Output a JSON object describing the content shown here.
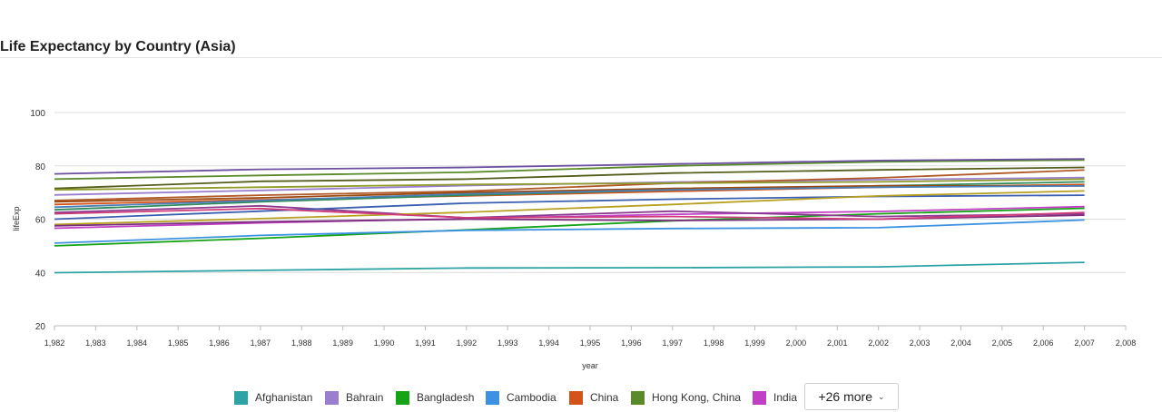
{
  "header": {
    "title": "Life Expectancy by Country (Asia)"
  },
  "chart_data": {
    "type": "line",
    "title": "Life Expectancy by Country (Asia)",
    "xlabel": "year",
    "ylabel": "lifeExp",
    "xlim": [
      1982,
      2008
    ],
    "ylim": [
      20,
      100
    ],
    "x_ticks": [
      "1,982",
      "1,983",
      "1,984",
      "1,985",
      "1,986",
      "1,987",
      "1,988",
      "1,989",
      "1,990",
      "1,991",
      "1,992",
      "1,993",
      "1,994",
      "1,995",
      "1,996",
      "1,997",
      "1,998",
      "1,999",
      "2,000",
      "2,001",
      "2,002",
      "2,003",
      "2,004",
      "2,005",
      "2,006",
      "2,007",
      "2,008"
    ],
    "y_ticks": [
      "20",
      "40",
      "60",
      "80",
      "100"
    ],
    "grid": "horizontal",
    "x": [
      1982,
      1987,
      1992,
      1997,
      2002,
      2007
    ],
    "series": [
      {
        "name": "Afghanistan",
        "color": "#2ea3a6",
        "values": [
          39.9,
          40.8,
          41.7,
          41.8,
          42.1,
          43.8
        ]
      },
      {
        "name": "Bahrain",
        "color": "#9b7fcf",
        "values": [
          69.1,
          70.8,
          72.6,
          73.9,
          74.8,
          75.6
        ]
      },
      {
        "name": "Bangladesh",
        "color": "#16a316",
        "values": [
          50.0,
          52.8,
          56.0,
          59.4,
          62.0,
          64.1
        ]
      },
      {
        "name": "Cambodia",
        "color": "#3c92e0",
        "values": [
          51.0,
          53.9,
          55.8,
          56.5,
          56.8,
          59.7
        ]
      },
      {
        "name": "China",
        "color": "#d4531b",
        "values": [
          65.5,
          67.3,
          68.7,
          70.4,
          72.0,
          73.0
        ]
      },
      {
        "name": "Hong Kong, China",
        "color": "#5a8a2a",
        "values": [
          75.0,
          76.4,
          77.6,
          80.0,
          81.5,
          82.2
        ]
      },
      {
        "name": "India",
        "color": "#c03fc4",
        "values": [
          56.6,
          58.6,
          60.2,
          61.8,
          62.9,
          64.7
        ]
      },
      {
        "color": "#6b4fa0",
        "values": [
          77.0,
          78.7,
          79.4,
          80.7,
          82.0,
          82.6
        ]
      },
      {
        "color": "#555e1c",
        "values": [
          71.5,
          74.2,
          75.0,
          77.3,
          78.5,
          79.4
        ]
      },
      {
        "color": "#b05a28",
        "values": [
          67.0,
          69.0,
          70.5,
          73.5,
          75.5,
          78.4
        ]
      },
      {
        "color": "#8a3b8f",
        "values": [
          62.5,
          65.0,
          60.5,
          63.0,
          61.0,
          62.0
        ]
      },
      {
        "color": "#3a5fb0",
        "values": [
          60.0,
          63.0,
          66.0,
          67.5,
          68.5,
          69.0
        ]
      },
      {
        "color": "#b8a020",
        "values": [
          58.0,
          60.2,
          62.6,
          65.5,
          68.7,
          70.6
        ]
      },
      {
        "color": "#7a2f7d",
        "values": [
          57.5,
          59.0,
          60.0,
          59.5,
          60.0,
          61.5
        ]
      },
      {
        "color": "#2f8a5a",
        "values": [
          63.5,
          66.5,
          69.0,
          71.0,
          72.5,
          74.0
        ]
      },
      {
        "color": "#9a4a10",
        "values": [
          66.5,
          68.0,
          70.0,
          71.5,
          72.5,
          72.5
        ]
      },
      {
        "color": "#4a7fb8",
        "values": [
          64.5,
          67.0,
          69.5,
          71.0,
          72.0,
          72.5
        ]
      },
      {
        "color": "#d03b7a",
        "values": [
          62.0,
          64.0,
          60.5,
          61.0,
          60.0,
          62.5
        ]
      },
      {
        "color": "#8f9b2a",
        "values": [
          71.0,
          72.0,
          73.0,
          73.5,
          74.0,
          75.0
        ]
      }
    ],
    "legend": {
      "placement": "bottom",
      "visible_items": [
        {
          "label": "Afghanistan",
          "color": "#2ea3a6"
        },
        {
          "label": "Bahrain",
          "color": "#9b7fcf"
        },
        {
          "label": "Bangladesh",
          "color": "#16a316"
        },
        {
          "label": "Cambodia",
          "color": "#3c92e0"
        },
        {
          "label": "China",
          "color": "#d4531b"
        },
        {
          "label": "Hong Kong, China",
          "color": "#5a8a2a"
        },
        {
          "label": "India",
          "color": "#c03fc4"
        }
      ],
      "more_button_label": "+26 more"
    }
  }
}
